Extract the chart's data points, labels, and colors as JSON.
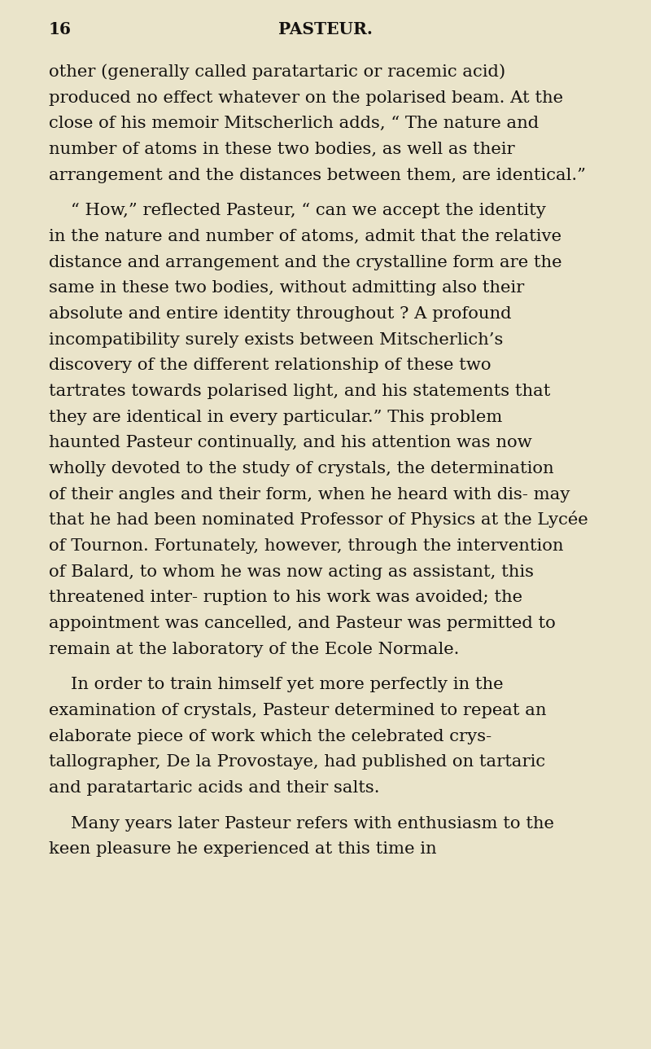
{
  "background_color": "#EAE4CA",
  "page_number": "16",
  "header_text": "PASTEUR.",
  "text_color": "#151210",
  "font_size_body": 15.2,
  "font_size_header": 14.5,
  "paragraphs": [
    {
      "indent": false,
      "text": "other (generally called paratartaric or racemic acid) produced no effect whatever on the polarised beam. At the close of his memoir Mitscherlich adds, “ The nature and number of atoms in these two bodies, as well as their arrangement and the distances between them, are identical.”"
    },
    {
      "indent": true,
      "text": "“ How,” reflected Pasteur, “ can we accept the identity in the nature and number of atoms, admit that the relative distance and arrangement and the crystalline form are the same in these two bodies, without admitting also their absolute and entire identity throughout ?  A profound incompatibility surely exists between Mitscherlich’s discovery of the different relationship of these two tartrates towards polarised light, and his statements that they are identical in every particular.”  This problem haunted Pasteur continually, and his attention was now wholly devoted to the study of crystals, the determination of their angles and their form, when he heard with dis- may that he had been nominated Professor of Physics at the Lycée of Tournon.  Fortunately, however, through the intervention of Balard, to whom he was now acting as assistant, this threatened inter- ruption to his work was avoided; the appointment was cancelled, and Pasteur was permitted to remain at the laboratory of the Ecole Normale."
    },
    {
      "indent": true,
      "text": "In order to train himself yet more perfectly in the examination of crystals, Pasteur determined to repeat an elaborate piece of work which the celebrated crys- tallographer, De la Provostaye, had published on tartaric and paratartaric acids and their salts."
    },
    {
      "indent": true,
      "text": "Many years later Pasteur refers with enthusiasm to the keen pleasure he experienced at this time in"
    }
  ]
}
